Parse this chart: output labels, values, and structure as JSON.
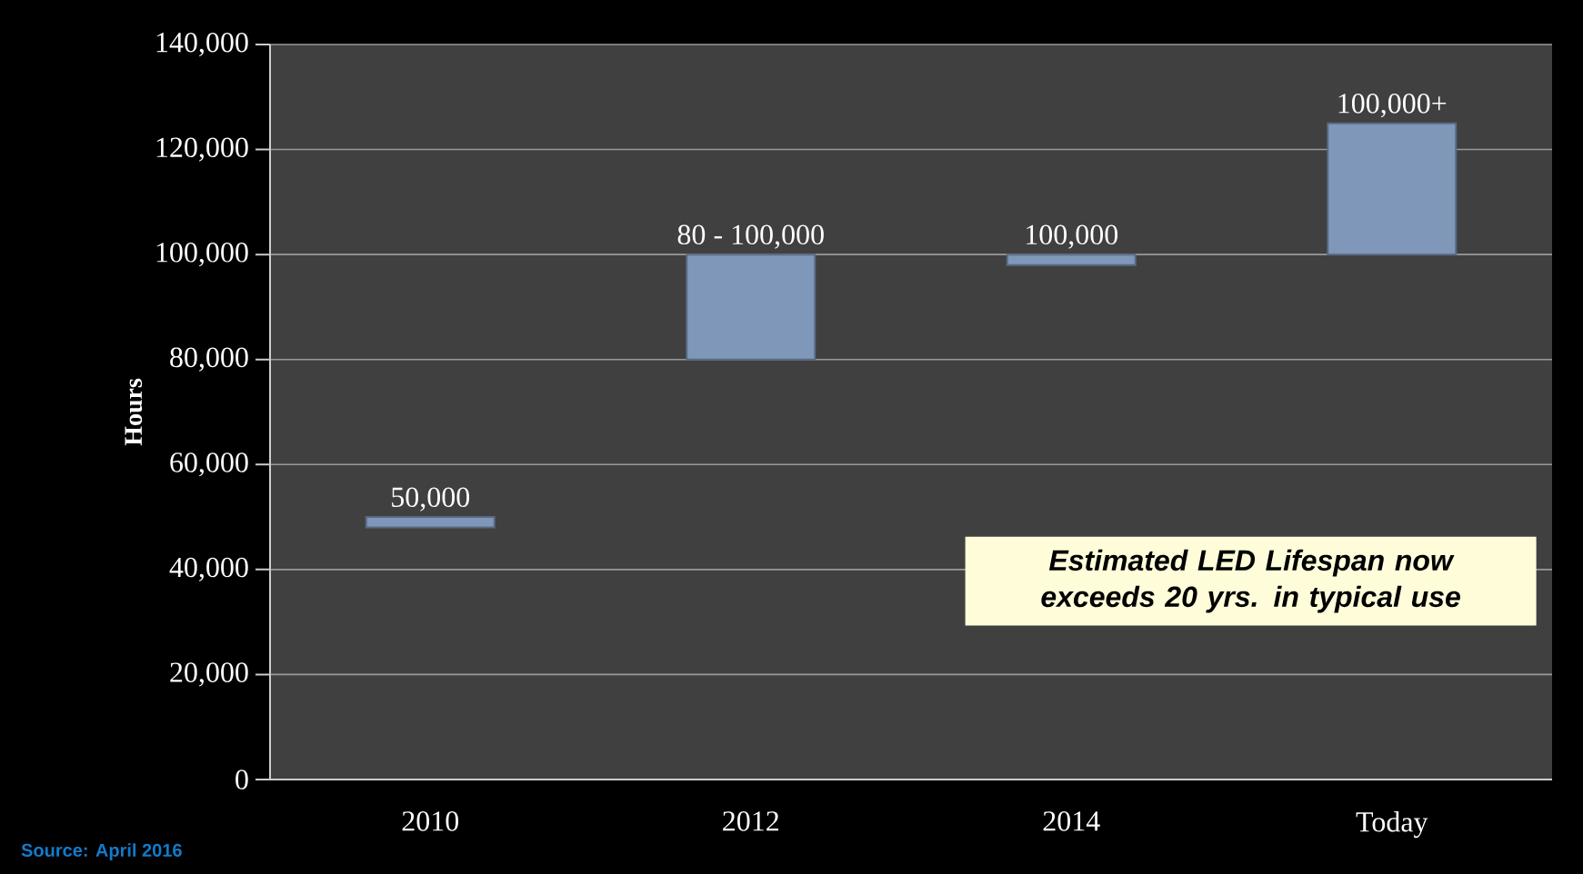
{
  "chart_data": {
    "type": "bar",
    "ylabel": "Hours",
    "categories": [
      "2010",
      "2012",
      "2014",
      "Today"
    ],
    "values": [
      2000,
      20000,
      2000,
      25000
    ],
    "base": [
      48000,
      80000,
      98000,
      100000
    ],
    "color": "#7f97b9",
    "ylim": [
      0,
      140000
    ],
    "yticks": [
      {
        "value": 0,
        "label": "0"
      },
      {
        "value": 20000,
        "label": "20,000"
      },
      {
        "value": 40000,
        "label": "40,000"
      },
      {
        "value": 60000,
        "label": "60,000"
      },
      {
        "value": 80000,
        "label": "80,000"
      },
      {
        "value": 100000,
        "label": "100,000"
      },
      {
        "value": 120000,
        "label": "120,000"
      },
      {
        "value": 140000,
        "label": "140,000"
      }
    ],
    "grid": "y",
    "annotations": [
      "Estimated LED Lifespan now exceeds 20 yrs. in typical use",
      "Source:  April 2016",
      {
        "text": "50,000",
        "x": "2010",
        "y": 50000
      },
      {
        "text": "80 - 100,000",
        "x": "2012",
        "y": 100000
      },
      {
        "text": "100,000",
        "x": "2014",
        "y": 100000
      },
      {
        "text": "100,000+",
        "x": "Today",
        "y": 125000
      }
    ]
  }
}
